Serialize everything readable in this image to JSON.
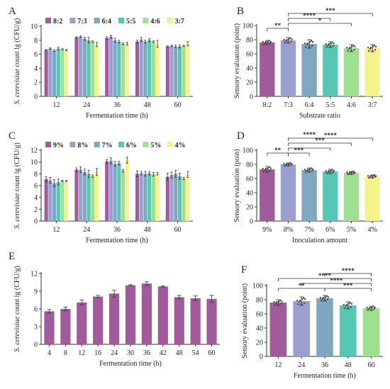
{
  "colors": {
    "c1": "#a05c9a",
    "c2": "#9b9fd0",
    "c3": "#7fa7bf",
    "c4": "#56c7b5",
    "c5": "#9de08f",
    "c6": "#f4f28a",
    "axis": "#333333"
  },
  "chart_data": [
    {
      "id": "A",
      "panel_label": "A",
      "type": "bar",
      "ylabel_italic": "S. cerevisiae",
      "ylabel_rest": " count lg (CFU/g)",
      "xlabel": "Fermentation time (h)",
      "categories": [
        "12",
        "24",
        "36",
        "48",
        "60"
      ],
      "ylim": [
        0,
        10
      ],
      "yticks": [
        0,
        2,
        4,
        6,
        8,
        10
      ],
      "legend": [
        "8:2",
        "7:3",
        "6:4",
        "5:5",
        "4:6",
        "3:7"
      ],
      "series": [
        {
          "name": "8:2",
          "values": [
            6.6,
            8.4,
            8.3,
            7.8,
            7.1
          ],
          "errors": [
            0.1,
            0.1,
            0.2,
            0.2,
            0.1
          ]
        },
        {
          "name": "7:3",
          "values": [
            6.8,
            8.5,
            8.5,
            8.1,
            7.2
          ],
          "errors": [
            0.1,
            0.1,
            0.2,
            0.3,
            0.1
          ]
        },
        {
          "name": "6:4",
          "values": [
            6.5,
            8.2,
            8.0,
            7.8,
            7.1
          ],
          "errors": [
            0.1,
            0.2,
            0.3,
            0.2,
            0.2
          ]
        },
        {
          "name": "5:5",
          "values": [
            6.8,
            8.0,
            7.8,
            8.0,
            7.1
          ],
          "errors": [
            0.2,
            0.4,
            0.2,
            0.2,
            0.2
          ]
        },
        {
          "name": "4:6",
          "values": [
            6.7,
            7.8,
            7.5,
            7.8,
            7.2
          ],
          "errors": [
            0.1,
            0.1,
            0.1,
            0.1,
            0.1
          ]
        },
        {
          "name": "3:7",
          "values": [
            6.6,
            7.4,
            7.5,
            7.5,
            7.5
          ],
          "errors": [
            0.1,
            0.3,
            0.2,
            0.5,
            0.3
          ]
        }
      ]
    },
    {
      "id": "B",
      "panel_label": "B",
      "type": "bar",
      "ylabel": "Sensory evaluation (point)",
      "xlabel": "Substrate ratio",
      "categories": [
        "8:2",
        "7:3",
        "6:4",
        "5:5",
        "4:6",
        "3:7"
      ],
      "ylim": [
        0,
        100
      ],
      "yticks": [
        0,
        20,
        40,
        60,
        80,
        100
      ],
      "values": [
        76,
        79,
        74,
        73,
        68,
        68
      ],
      "errors": [
        3,
        4,
        6,
        4,
        5,
        5
      ],
      "significance": [
        {
          "from": 0,
          "to": 1,
          "label": "**",
          "level": 0
        },
        {
          "from": 1,
          "to": 4,
          "label": "*",
          "level": 1
        },
        {
          "from": 1,
          "to": 3,
          "label": "****",
          "level": 2
        },
        {
          "from": 1,
          "to": 5,
          "label": "***",
          "level": 3
        }
      ]
    },
    {
      "id": "C",
      "panel_label": "C",
      "type": "bar",
      "ylabel_italic": "S. cerevisiae",
      "ylabel_rest": " count lg (CFU/g)",
      "xlabel": "Fermentation time (h)",
      "categories": [
        "12",
        "24",
        "36",
        "48",
        "60"
      ],
      "ylim": [
        0,
        12
      ],
      "yticks": [
        0,
        2,
        4,
        6,
        8,
        10,
        12
      ],
      "legend": [
        "9%",
        "8%",
        "7%",
        "6%",
        "5%",
        "4%"
      ],
      "series": [
        {
          "name": "9%",
          "values": [
            7.1,
            8.7,
            10.1,
            8.0,
            7.5
          ],
          "errors": [
            0.4,
            0.3,
            0.3,
            0.5,
            0.6
          ]
        },
        {
          "name": "8%",
          "values": [
            6.9,
            8.7,
            10.2,
            8.1,
            7.8
          ],
          "errors": [
            0.5,
            0.5,
            0.5,
            0.3,
            0.5
          ]
        },
        {
          "name": "7%",
          "values": [
            6.4,
            8.3,
            9.7,
            8.0,
            8.0
          ],
          "errors": [
            0.6,
            0.5,
            0.4,
            0.4,
            0.6
          ]
        },
        {
          "name": "6%",
          "values": [
            6.6,
            8.0,
            9.8,
            8.1,
            7.6
          ],
          "errors": [
            0.5,
            0.6,
            0.3,
            0.3,
            0.5
          ]
        },
        {
          "name": "5%",
          "values": [
            6.8,
            7.6,
            8.5,
            7.9,
            7.2
          ],
          "errors": [
            0.1,
            0.2,
            0.2,
            0.3,
            0.2
          ]
        },
        {
          "name": "4%",
          "values": [
            6.8,
            8.3,
            10.3,
            8.0,
            7.9
          ],
          "errors": [
            0.1,
            0.6,
            0.5,
            0.2,
            0.5
          ]
        }
      ]
    },
    {
      "id": "D",
      "panel_label": "D",
      "type": "bar",
      "ylabel": "Sensory evaluation (poin)",
      "xlabel": "Inoculation amount",
      "categories": [
        "9%",
        "8%",
        "7%",
        "6%",
        "5%",
        "4%"
      ],
      "ylim": [
        0,
        100
      ],
      "yticks": [
        0,
        20,
        40,
        60,
        80,
        100
      ],
      "values": [
        73,
        80,
        72,
        70,
        68,
        63
      ],
      "errors": [
        4,
        2,
        3,
        3,
        2,
        2
      ],
      "significance": [
        {
          "from": 0,
          "to": 1,
          "label": "**",
          "level": 0
        },
        {
          "from": 1,
          "to": 2,
          "label": "***",
          "level": 0
        },
        {
          "from": 1,
          "to": 3,
          "label": "",
          "level": 1
        },
        {
          "from": 1,
          "to": 4,
          "label": "***",
          "level": 2
        },
        {
          "from": 1,
          "to": 5,
          "label": "****",
          "level": 3
        }
      ],
      "extra_significance_label": "****"
    },
    {
      "id": "E",
      "panel_label": "E",
      "type": "bar",
      "ylabel_italic": "S. cerevisiae",
      "ylabel_rest": " count lg (CFU/g)",
      "xlabel": "Fermentation time (h)",
      "categories": [
        "4",
        "8",
        "12",
        "16",
        "24",
        "30",
        "36",
        "42",
        "48",
        "54",
        "60"
      ],
      "ylim": [
        0,
        12
      ],
      "yticks": [
        0,
        3,
        6,
        9,
        12
      ],
      "values": [
        5.6,
        6.0,
        7.1,
        8.1,
        8.6,
        10.0,
        10.3,
        9.8,
        8.0,
        7.8,
        7.7
      ],
      "errors": [
        0.3,
        0.3,
        0.4,
        0.2,
        0.6,
        0.1,
        0.3,
        0.1,
        0.3,
        0.4,
        0.6
      ]
    },
    {
      "id": "F",
      "panel_label": "F",
      "type": "bar",
      "ylabel": "Sensory evaluation (point)",
      "xlabel": "Fermentation time (h)",
      "categories": [
        "12",
        "24",
        "36",
        "48",
        "60"
      ],
      "ylim": [
        0,
        100
      ],
      "yticks": [
        0,
        20,
        40,
        60,
        80,
        100
      ],
      "values": [
        76,
        78,
        82,
        72,
        68
      ],
      "errors": [
        4,
        6,
        4,
        5,
        3
      ],
      "significance": [
        {
          "from": 0,
          "to": 2,
          "label": "**",
          "level": 0
        },
        {
          "from": 2,
          "to": 4,
          "label": "***",
          "level": 0
        },
        {
          "from": 1,
          "to": 4,
          "label": "****",
          "level": 1
        },
        {
          "from": 0,
          "to": 4,
          "label": "****",
          "level": 2
        },
        {
          "from": 2,
          "to": 4,
          "label": "****",
          "level": 3
        }
      ]
    }
  ]
}
